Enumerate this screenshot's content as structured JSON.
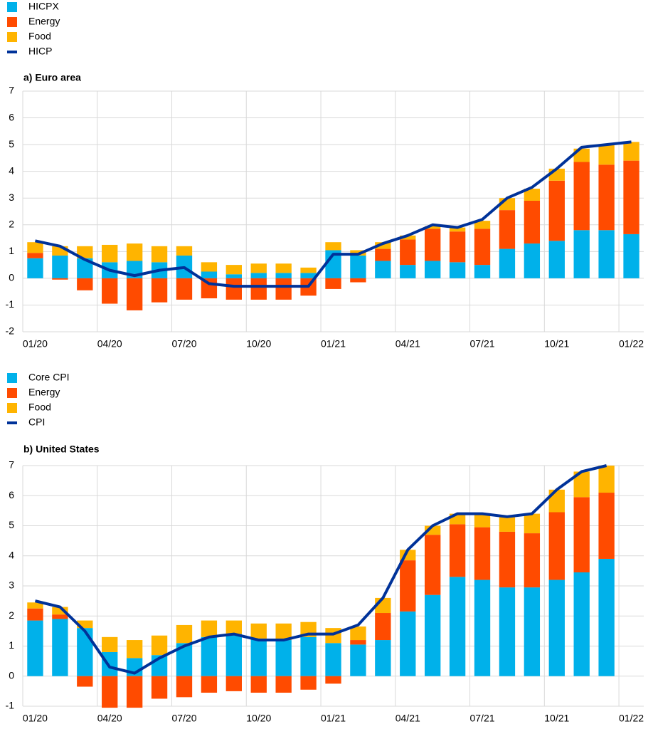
{
  "chart_data": [
    {
      "type": "bar",
      "title": "a) Euro area",
      "categories": [
        "01/20",
        null,
        null,
        "04/20",
        null,
        null,
        "07/20",
        null,
        null,
        "10/20",
        null,
        null,
        "01/21",
        null,
        null,
        "04/21",
        null,
        null,
        "07/21",
        null,
        null,
        "10/21",
        null,
        null,
        "01/22"
      ],
      "series": [
        {
          "name": "HICPX",
          "color": "#00b1ea",
          "values": [
            0.75,
            0.85,
            0.75,
            0.6,
            0.65,
            0.6,
            0.85,
            0.25,
            0.15,
            0.2,
            0.2,
            0.2,
            1.05,
            0.85,
            0.65,
            0.5,
            0.65,
            0.6,
            0.5,
            1.1,
            1.3,
            1.4,
            1.8,
            1.8,
            1.65
          ]
        },
        {
          "name": "Energy",
          "color": "#ff4b00",
          "values": [
            0.2,
            -0.05,
            -0.45,
            -0.95,
            -1.2,
            -0.9,
            -0.8,
            -0.75,
            -0.8,
            -0.8,
            -0.8,
            -0.65,
            -0.4,
            -0.15,
            0.45,
            0.95,
            1.2,
            1.15,
            1.35,
            1.45,
            1.6,
            2.25,
            2.55,
            2.45,
            2.75
          ]
        },
        {
          "name": "Food",
          "color": "#ffb400",
          "values": [
            0.4,
            0.35,
            0.45,
            0.65,
            0.65,
            0.6,
            0.35,
            0.35,
            0.35,
            0.35,
            0.35,
            0.2,
            0.3,
            0.2,
            0.25,
            0.15,
            0.1,
            0.15,
            0.3,
            0.45,
            0.45,
            0.45,
            0.5,
            0.75,
            0.7
          ]
        },
        {
          "name": "HICP",
          "color": "#003299",
          "type": "line",
          "values": [
            1.4,
            1.2,
            0.7,
            0.3,
            0.1,
            0.3,
            0.4,
            -0.2,
            -0.3,
            -0.3,
            -0.3,
            -0.3,
            0.9,
            0.9,
            1.3,
            1.6,
            2.0,
            1.9,
            2.2,
            3.0,
            3.4,
            4.1,
            4.9,
            5.0,
            5.1
          ]
        }
      ],
      "ylim": [
        -2,
        7
      ],
      "yticks": [
        -2,
        -1,
        0,
        1,
        2,
        3,
        4,
        5,
        6,
        7
      ],
      "grid": true
    },
    {
      "type": "bar",
      "title": "b) United States",
      "categories": [
        "01/20",
        null,
        null,
        "04/20",
        null,
        null,
        "07/20",
        null,
        null,
        "10/20",
        null,
        null,
        "01/21",
        null,
        null,
        "04/21",
        null,
        null,
        "07/21",
        null,
        null,
        "10/21",
        null,
        null,
        "01/22"
      ],
      "series": [
        {
          "name": "Core CPI",
          "color": "#00b1ea",
          "values": [
            1.85,
            1.9,
            1.6,
            0.8,
            0.6,
            0.7,
            1.1,
            1.3,
            1.4,
            1.25,
            1.2,
            1.3,
            1.1,
            1.05,
            1.2,
            2.15,
            2.7,
            3.3,
            3.2,
            2.95,
            2.95,
            3.2,
            3.45,
            3.9,
            null
          ]
        },
        {
          "name": "Energy",
          "color": "#ff4b00",
          "values": [
            0.4,
            0.15,
            -0.35,
            -1.05,
            -1.05,
            -0.75,
            -0.7,
            -0.55,
            -0.5,
            -0.55,
            -0.55,
            -0.45,
            -0.25,
            0.15,
            0.9,
            1.7,
            2.0,
            1.75,
            1.75,
            1.85,
            1.8,
            2.25,
            2.5,
            2.2,
            null
          ]
        },
        {
          "name": "Food",
          "color": "#ffb400",
          "values": [
            0.2,
            0.25,
            0.25,
            0.5,
            0.6,
            0.65,
            0.6,
            0.55,
            0.45,
            0.5,
            0.55,
            0.5,
            0.5,
            0.45,
            0.5,
            0.35,
            0.3,
            0.35,
            0.45,
            0.5,
            0.65,
            0.75,
            0.85,
            0.9,
            null
          ]
        },
        {
          "name": "CPI",
          "color": "#003299",
          "type": "line",
          "values": [
            2.5,
            2.3,
            1.5,
            0.3,
            0.1,
            0.6,
            1.0,
            1.3,
            1.4,
            1.2,
            1.2,
            1.4,
            1.4,
            1.7,
            2.6,
            4.2,
            5.0,
            5.4,
            5.4,
            5.3,
            5.4,
            6.2,
            6.8,
            7.0,
            null
          ]
        }
      ],
      "ylim": [
        -1,
        7
      ],
      "yticks": [
        -1,
        0,
        1,
        2,
        3,
        4,
        5,
        6,
        7
      ],
      "grid": true
    }
  ]
}
